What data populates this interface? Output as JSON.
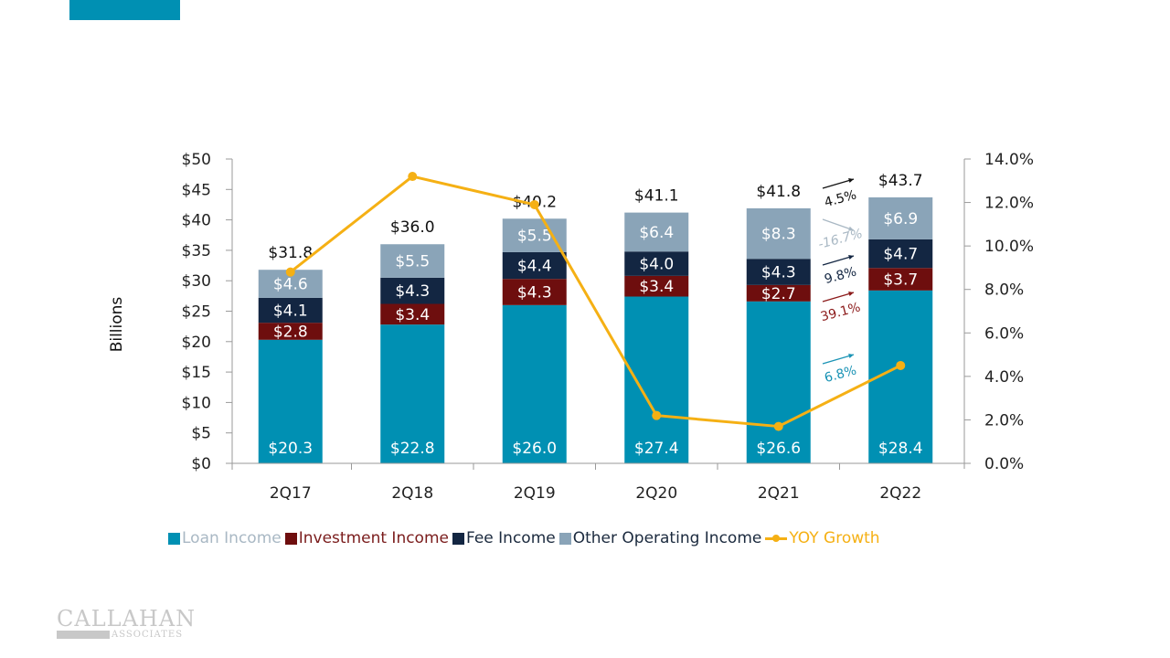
{
  "slide": {
    "accent_color": "#0090b3",
    "logo": {
      "main": "CALLAHAN",
      "sub": "ASSOCIATES",
      "ampersand": "&"
    }
  },
  "chart_data": {
    "type": "bar",
    "subtype": "stacked-bar-with-line",
    "title": "",
    "categories": [
      "2Q17",
      "2Q18",
      "2Q19",
      "2Q20",
      "2Q21",
      "2Q22"
    ],
    "ylabel": "Billions",
    "ylim": [
      0,
      50
    ],
    "yticks": [
      "$0",
      "$5",
      "$10",
      "$15",
      "$20",
      "$25",
      "$30",
      "$35",
      "$40",
      "$45",
      "$50"
    ],
    "y2lim": [
      0,
      14
    ],
    "y2ticks": [
      "0.0%",
      "2.0%",
      "4.0%",
      "6.0%",
      "8.0%",
      "10.0%",
      "12.0%",
      "14.0%"
    ],
    "grid": false,
    "legend_position": "bottom",
    "series": [
      {
        "name": "Loan Income",
        "color": "#0090b3",
        "label_color": "#ffffff",
        "values": [
          20.3,
          22.8,
          26.0,
          27.4,
          26.6,
          28.4
        ],
        "labels": [
          "$20.3",
          "$22.8",
          "$26.0",
          "$27.4",
          "$26.6",
          "$28.4"
        ],
        "legend_text_color": "#a9b8c4"
      },
      {
        "name": "Investment Income",
        "color": "#6e0e0e",
        "label_color": "#ffffff",
        "values": [
          2.8,
          3.4,
          4.3,
          3.4,
          2.7,
          3.7
        ],
        "labels": [
          "$2.8",
          "$3.4",
          "$4.3",
          "$3.4",
          "$2.7",
          "$3.7"
        ],
        "legend_text_color": "#7a1c1c"
      },
      {
        "name": "Fee Income",
        "color": "#132642",
        "label_color": "#ffffff",
        "values": [
          4.1,
          4.3,
          4.4,
          4.0,
          4.3,
          4.7
        ],
        "labels": [
          "$4.1",
          "$4.3",
          "$4.4",
          "$4.0",
          "$4.3",
          "$4.7"
        ],
        "legend_text_color": "#1b2a3e"
      },
      {
        "name": "Other Operating Income",
        "color": "#8aa4b8",
        "label_color": "#ffffff",
        "values": [
          4.6,
          5.5,
          5.5,
          6.4,
          8.3,
          6.9
        ],
        "labels": [
          "$4.6",
          "$5.5",
          "$5.5",
          "$6.4",
          "$8.3",
          "$6.9"
        ],
        "legend_text_color": "#1b2a3e"
      }
    ],
    "totals": {
      "values": [
        31.8,
        36.0,
        40.2,
        41.1,
        41.8,
        43.7
      ],
      "labels": [
        "$31.8",
        "$36.0",
        "$40.2",
        "$41.1",
        "$41.8",
        "$43.7"
      ]
    },
    "line_series": {
      "name": "YOY Growth",
      "color": "#f5b014",
      "axis": "right",
      "values": [
        8.8,
        13.2,
        11.9,
        2.2,
        1.7,
        4.5
      ],
      "legend_text_color": "#f5b014"
    },
    "annotations": [
      {
        "text": "4.5%",
        "color": "#111111",
        "refers_to": "Total"
      },
      {
        "text": "-16.7%",
        "color": "#a9b8c4",
        "refers_to": "Other Operating Income"
      },
      {
        "text": "9.8%",
        "color": "#132642",
        "refers_to": "Fee Income"
      },
      {
        "text": "39.1%",
        "color": "#8b1a1a",
        "refers_to": "Investment Income"
      },
      {
        "text": "6.8%",
        "color": "#1a93b5",
        "refers_to": "Loan Income"
      }
    ]
  }
}
